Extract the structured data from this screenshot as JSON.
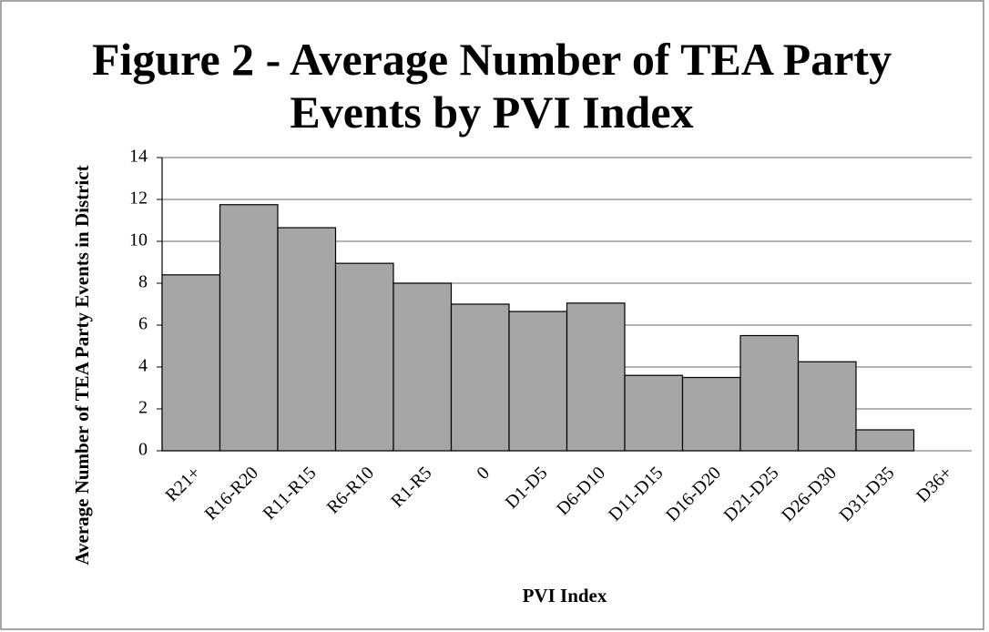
{
  "chart_data": {
    "type": "bar",
    "title": "Figure 2 - Average Number of TEA Party Events by PVI Index",
    "x_label": "PVI Index",
    "y_label": "Average Number of TEA Party Events in District",
    "categories": [
      "R21+",
      "R16-R20",
      "R11-R15",
      "R6-R10",
      "R1-R5",
      "0",
      "D1-D5",
      "D6-D10",
      "D11-D15",
      "D16-D20",
      "D21-D25",
      "D26-D30",
      "D31-D35",
      "D36+"
    ],
    "values": [
      8.4,
      11.75,
      10.65,
      8.95,
      8.0,
      7.0,
      6.65,
      7.05,
      3.6,
      3.5,
      5.5,
      4.25,
      1.0,
      0
    ],
    "color": "#a6a6a6",
    "ylim": [
      0,
      14
    ],
    "yticks": [
      0,
      2,
      4,
      6,
      8,
      10,
      12,
      14
    ],
    "grid": true
  }
}
